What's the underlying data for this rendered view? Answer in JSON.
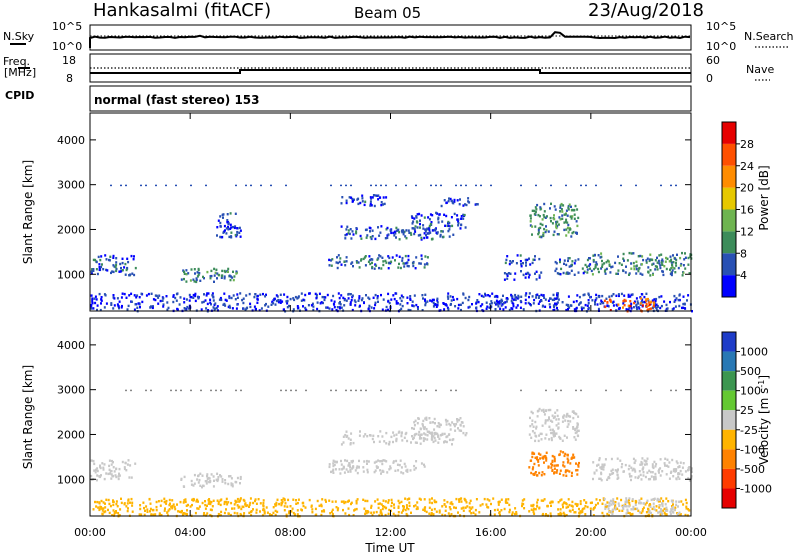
{
  "header": {
    "station": "Hankasalmi (fitACF)",
    "beam": "Beam 05",
    "date": "23/Aug/2018"
  },
  "noise_panel": {
    "left_label": "N.Sky",
    "right_label": "N.Search",
    "left_ticks": [
      "10^5",
      "10^0"
    ],
    "right_ticks": [
      "10^5",
      "10^0"
    ]
  },
  "freq_panel": {
    "left_label_top": "Freq.",
    "left_label_unit": "[MHz]",
    "left_ticks": [
      "18",
      "8"
    ],
    "right_label": "Nave",
    "right_ticks": [
      "60",
      "0"
    ]
  },
  "cpid_panel": {
    "label": "CPID",
    "text": "normal (fast stereo) 153"
  },
  "chart_data": [
    {
      "type": "heatmap",
      "name": "power",
      "ylabel": "Slant Range [km]",
      "xlabel": "",
      "xlim": [
        0,
        24
      ],
      "ylim": [
        180,
        4600
      ],
      "yticks": [
        "1000",
        "2000",
        "3000",
        "4000"
      ],
      "colorbar": {
        "label": "Power [dB]",
        "ticks": [
          "4",
          "8",
          "12",
          "16",
          "20",
          "24",
          "28"
        ],
        "range": [
          0,
          32
        ],
        "colors": [
          "#0000ff",
          "#2850b4",
          "#3c8c5a",
          "#6eb450",
          "#e6c800",
          "#ff8c00",
          "#ff5000",
          "#e60000"
        ]
      },
      "regions": [
        {
          "t0": 0.0,
          "t1": 1.8,
          "r0": 1000,
          "r1": 1450,
          "level": 6
        },
        {
          "t0": 0.0,
          "t1": 24.0,
          "r0": 200,
          "r1": 600,
          "level": 4
        },
        {
          "t0": 3.6,
          "t1": 6.0,
          "r0": 850,
          "r1": 1150,
          "level": 9
        },
        {
          "t0": 5.0,
          "t1": 6.0,
          "r0": 1850,
          "r1": 2400,
          "level": 5
        },
        {
          "t0": 9.5,
          "t1": 13.5,
          "r0": 1150,
          "r1": 1450,
          "level": 7
        },
        {
          "t0": 10.0,
          "t1": 14.5,
          "r0": 1800,
          "r1": 2100,
          "level": 6
        },
        {
          "t0": 12.8,
          "t1": 15.0,
          "r0": 2000,
          "r1": 2400,
          "level": 5
        },
        {
          "t0": 10.0,
          "t1": 12.0,
          "r0": 2550,
          "r1": 2800,
          "level": 5
        },
        {
          "t0": 14.0,
          "t1": 15.5,
          "r0": 2550,
          "r1": 2750,
          "level": 4
        },
        {
          "t0": 16.5,
          "t1": 18.0,
          "r0": 1200,
          "r1": 1450,
          "level": 5
        },
        {
          "t0": 16.5,
          "t1": 18.0,
          "r0": 900,
          "r1": 1100,
          "level": 4
        },
        {
          "t0": 17.5,
          "t1": 19.5,
          "r0": 1850,
          "r1": 2600,
          "level": 10
        },
        {
          "t0": 18.5,
          "t1": 20.0,
          "r0": 1000,
          "r1": 1400,
          "level": 7
        },
        {
          "t0": 20.0,
          "t1": 24.0,
          "r0": 1000,
          "r1": 1500,
          "level": 9
        },
        {
          "t0": 20.5,
          "t1": 22.5,
          "r0": 200,
          "r1": 500,
          "level": 25
        }
      ]
    },
    {
      "type": "heatmap",
      "name": "velocity",
      "ylabel": "Slant Range [km]",
      "xlabel": "Time UT",
      "xlim": [
        0,
        24
      ],
      "ylim": [
        180,
        4600
      ],
      "xticks": [
        "00:00",
        "04:00",
        "08:00",
        "12:00",
        "16:00",
        "20:00",
        "00:00"
      ],
      "yticks": [
        "1000",
        "2000",
        "3000",
        "4000"
      ],
      "colorbar": {
        "label": "Velocity",
        "label_unit": "[m s",
        "label_exp": "-1",
        "label_close": "]",
        "ticks": [
          "1000",
          "500",
          "100",
          "25",
          "-25",
          "-100",
          "-500",
          "-1000"
        ],
        "colors": [
          "#1e3cc8",
          "#2878b4",
          "#3c9650",
          "#64c832",
          "#c8c8c8",
          "#ffb400",
          "#ff8200",
          "#ff3c00",
          "#e60000"
        ]
      },
      "regions": [
        {
          "t0": 0.0,
          "t1": 1.8,
          "r0": 1000,
          "r1": 1450,
          "vel": 0
        },
        {
          "t0": 0.0,
          "t1": 24.0,
          "r0": 200,
          "r1": 600,
          "vel": -60
        },
        {
          "t0": 3.6,
          "t1": 6.0,
          "r0": 850,
          "r1": 1150,
          "vel": 0
        },
        {
          "t0": 9.5,
          "t1": 13.5,
          "r0": 1150,
          "r1": 1450,
          "vel": 0
        },
        {
          "t0": 10.0,
          "t1": 14.5,
          "r0": 1800,
          "r1": 2100,
          "vel": 0
        },
        {
          "t0": 12.8,
          "t1": 15.0,
          "r0": 2000,
          "r1": 2400,
          "vel": 0
        },
        {
          "t0": 17.5,
          "t1": 19.5,
          "r0": 1850,
          "r1": 2600,
          "vel": 0
        },
        {
          "t0": 17.5,
          "t1": 19.5,
          "r0": 1100,
          "r1": 1650,
          "vel": -300
        },
        {
          "t0": 20.0,
          "t1": 24.0,
          "r0": 1000,
          "r1": 1500,
          "vel": 0
        },
        {
          "t0": 20.5,
          "t1": 23.5,
          "r0": 250,
          "r1": 600,
          "vel": 0
        }
      ]
    }
  ]
}
